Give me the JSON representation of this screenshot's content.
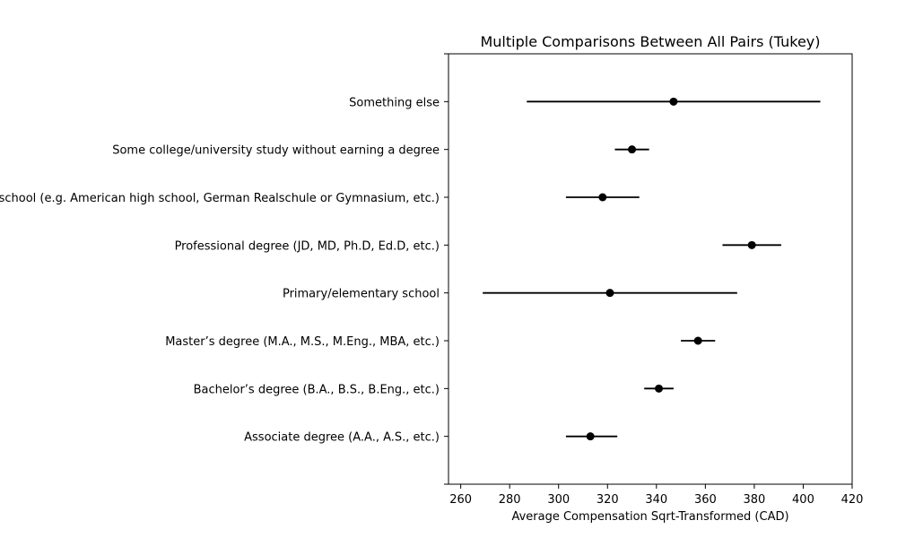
{
  "chart_data": {
    "type": "errorbar",
    "title": "Multiple Comparisons Between All Pairs (Tukey)",
    "xlabel": "Average Compensation Sqrt-Transformed (CAD)",
    "ylabel": "",
    "xlim": [
      255,
      420
    ],
    "xticks": [
      260,
      280,
      300,
      320,
      340,
      360,
      380,
      400,
      420
    ],
    "grid": false,
    "groups": [
      {
        "label": "Associate degree (A.A., A.S., etc.)",
        "mean": 313,
        "low": 303,
        "high": 324
      },
      {
        "label": "Bachelor’s degree (B.A., B.S., B.Eng., etc.)",
        "mean": 341,
        "low": 335,
        "high": 347
      },
      {
        "label": "Master’s degree (M.A., M.S., M.Eng., MBA, etc.)",
        "mean": 357,
        "low": 350,
        "high": 364
      },
      {
        "label": "Primary/elementary school",
        "mean": 321,
        "low": 269,
        "high": 373
      },
      {
        "label": "Professional degree (JD, MD, Ph.D, Ed.D, etc.)",
        "mean": 379,
        "low": 367,
        "high": 391
      },
      {
        "label": "Secondary school (e.g. American high school, German Realschule or Gymnasium, etc.)",
        "mean": 318,
        "low": 303,
        "high": 333
      },
      {
        "label": "Some college/university study without earning a degree",
        "mean": 330,
        "low": 323,
        "high": 337
      },
      {
        "label": "Something else",
        "mean": 347,
        "low": 287,
        "high": 407
      }
    ]
  }
}
